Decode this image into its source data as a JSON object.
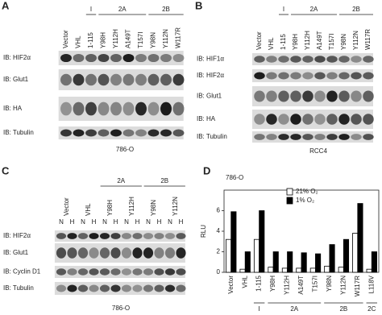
{
  "panel_a": {
    "letter": "A",
    "lanes": [
      "Vector",
      "VHL",
      "1-115",
      "Y98H",
      "Y112H",
      "A149T",
      "T157I",
      "Y98N",
      "Y112N",
      "W117R"
    ],
    "groups": [
      "I",
      "2A",
      "2B"
    ],
    "rows": [
      "IB: HIF2α",
      "IB: Glut1",
      "IB: HA",
      "IB: Tubulin"
    ],
    "cell_line": "786-O"
  },
  "panel_b": {
    "letter": "B",
    "lanes": [
      "Vector",
      "VHL",
      "1-115",
      "Y98H",
      "Y112H",
      "A149T",
      "T157I",
      "Y98N",
      "Y112N",
      "W117R"
    ],
    "groups": [
      "I",
      "2A",
      "2B"
    ],
    "rows": [
      "IB: HIF1α",
      "IB: HIF2α",
      "IB: Glut1",
      "IB: HA",
      "IB: Tubulin"
    ],
    "cell_line": "RCC4"
  },
  "panel_c": {
    "letter": "C",
    "lanes": [
      "Vector",
      "VHL",
      "Y98H",
      "Y112H",
      "Y98N",
      "Y112N"
    ],
    "conditions": [
      "N",
      "H"
    ],
    "groups": [
      "2A",
      "2B"
    ],
    "rows": [
      "IB: HIF2α",
      "IB: Glut1",
      "IB: Cyclin D1",
      "IB: Tubulin"
    ],
    "cell_line": "786-O"
  },
  "chart_data": {
    "type": "bar",
    "panel_label": "D",
    "subtitle": "786-O",
    "y_label": "RLU",
    "categories": [
      "Vector",
      "VHL",
      "1-115",
      "Y98H",
      "Y112H",
      "A149T",
      "T157I",
      "Y98N",
      "Y112N",
      "W117R",
      "L118V"
    ],
    "groups": [
      "I",
      "2A",
      "2B",
      "2C"
    ],
    "series": [
      {
        "name": "21% O₂",
        "color": "#ffffff",
        "values": [
          3.2,
          0.3,
          3.2,
          0.5,
          0.4,
          0.4,
          0.4,
          0.6,
          0.5,
          3.8,
          0.3
        ]
      },
      {
        "name": "1% O₂",
        "color": "#000000",
        "values": [
          5.9,
          2.0,
          6.0,
          2.0,
          2.0,
          1.9,
          1.8,
          2.7,
          3.2,
          6.7,
          2.0
        ]
      }
    ],
    "ylim": [
      0,
      8
    ],
    "yticks": [
      0,
      2,
      4,
      6
    ]
  }
}
